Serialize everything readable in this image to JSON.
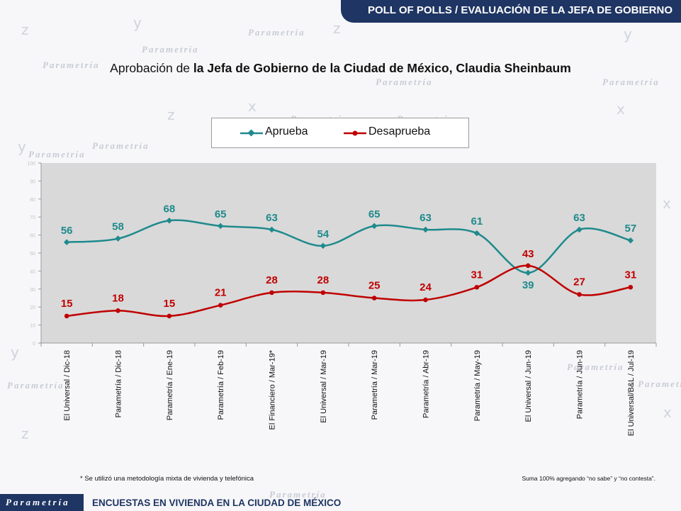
{
  "header": {
    "title": "POLL OF POLLS / EVALUACIÓN DE LA JEFA DE GOBIERNO"
  },
  "chart_title": {
    "prefix": "Aprobación de ",
    "bold": "la Jefa de Gobierno de la Ciudad de México, Claudia Sheinbaum"
  },
  "watermark": {
    "brand": "Parametría"
  },
  "footnotes": {
    "left": "* Se utilizó una metodología mixta de vivienda y telefónica",
    "right": "Suma 100%  agregando “no sabe” y “no contesta”."
  },
  "footer": {
    "logo": "Parametría",
    "text": "ENCUESTAS EN VIVIENDA EN LA CIUDAD DE MÉXICO"
  },
  "chart_data": {
    "type": "line",
    "title": "Aprobación de la Jefa de Gobierno de la Ciudad de México, Claudia Sheinbaum",
    "categories": [
      "El Universal / Dic-18",
      "Parametría / Dic-18",
      "Parametría / Ene-19",
      "Parametría / Feb-19",
      "El Financiero / Mar-19*",
      "El Universal / Mar-19",
      "Parametría / Mar-19",
      "Parametría / Abr-19",
      "Parametría / May-19",
      "El Universal / Jun-19",
      "Parametría / Jun-19",
      "El Universal/B&L / Jul-19"
    ],
    "series": [
      {
        "name": "Aprueba",
        "color": "#1f8a8c",
        "values": [
          56,
          58,
          68,
          65,
          63,
          54,
          65,
          63,
          61,
          39,
          63,
          57
        ]
      },
      {
        "name": "Desaprueba",
        "color": "#c00000",
        "values": [
          15,
          18,
          15,
          21,
          28,
          28,
          25,
          24,
          31,
          43,
          27,
          31
        ]
      }
    ],
    "ylim": [
      0,
      100
    ],
    "yticks": [
      0,
      10,
      20,
      30,
      40,
      50,
      60,
      70,
      80,
      90,
      100
    ],
    "plot_background": "#d9d9d9",
    "grid": false,
    "legend_position": "top-center"
  }
}
